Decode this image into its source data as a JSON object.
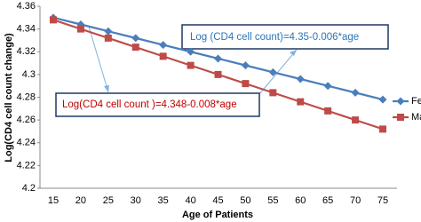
{
  "chart_data": {
    "type": "line",
    "x_label": "Age of Patients",
    "y_label": "Log(CD4 cell count change)",
    "categories": [
      "15",
      "20",
      "25",
      "30",
      "35",
      "40",
      "45",
      "50",
      "55",
      "60",
      "65",
      "70",
      "75"
    ],
    "series": [
      {
        "name": "Female",
        "color": "#4a7ebb",
        "marker": "diamond",
        "values": [
          4.35,
          4.344,
          4.338,
          4.332,
          4.326,
          4.32,
          4.314,
          4.308,
          4.302,
          4.296,
          4.29,
          4.284,
          4.278
        ]
      },
      {
        "name": "Male",
        "color": "#be4b48",
        "marker": "square",
        "values": [
          4.348,
          4.34,
          4.332,
          4.324,
          4.316,
          4.308,
          4.3,
          4.292,
          4.284,
          4.276,
          4.268,
          4.26,
          4.252
        ]
      }
    ],
    "ylim": [
      4.2,
      4.36
    ],
    "yticks": [
      4.2,
      4.22,
      4.24,
      4.26,
      4.28,
      4.3,
      4.32,
      4.34,
      4.36
    ],
    "grid": false,
    "annotations": [
      "Log (CD4 cell count)=4.35-0.006*age",
      "Log(CD4 cell count )=4.348-0.008*age"
    ]
  }
}
